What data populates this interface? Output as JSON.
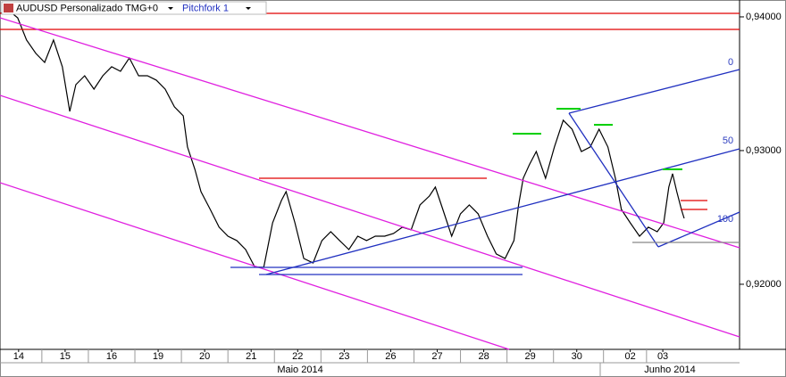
{
  "chart_data": {
    "type": "line",
    "title": "AUDUSD Personalizado TMG+0",
    "subtitle": "Pitchfork 1",
    "annotations": [
      "0",
      "50",
      "100"
    ],
    "months": [
      "Maio 2014",
      "Junho 2014"
    ],
    "color": "#000000",
    "grid": false,
    "xlim": [
      -0.4,
      15.5
    ],
    "ylim": [
      0.91513,
      0.94113
    ],
    "yticks": [
      {
        "value": 0.94,
        "label": "0,94000"
      },
      {
        "value": 0.93,
        "label": "0,93000"
      },
      {
        "value": 0.92,
        "label": "0,92000"
      }
    ],
    "xticks": [
      {
        "value": 0,
        "label": "14"
      },
      {
        "value": 1,
        "label": "15"
      },
      {
        "value": 2,
        "label": "16"
      },
      {
        "value": 3,
        "label": "19"
      },
      {
        "value": 4,
        "label": "20"
      },
      {
        "value": 5,
        "label": "21"
      },
      {
        "value": 6,
        "label": "22"
      },
      {
        "value": 7,
        "label": "23"
      },
      {
        "value": 8,
        "label": "26"
      },
      {
        "value": 9,
        "label": "27"
      },
      {
        "value": 10,
        "label": "28"
      },
      {
        "value": 11,
        "label": "29"
      },
      {
        "value": 12,
        "label": "30"
      },
      {
        "value": 13.15,
        "label": "02"
      },
      {
        "value": 13.85,
        "label": "03"
      }
    ],
    "x": [
      -0.4,
      -0.21,
      -0.02,
      0.17,
      0.37,
      0.56,
      0.75,
      0.94,
      1.1,
      1.23,
      1.42,
      1.62,
      1.81,
      2.0,
      2.19,
      2.38,
      2.58,
      2.77,
      2.96,
      3.15,
      3.35,
      3.54,
      3.63,
      3.79,
      3.92,
      4.12,
      4.31,
      4.5,
      4.69,
      4.88,
      5.08,
      5.27,
      5.46,
      5.65,
      5.75,
      5.94,
      6.13,
      6.33,
      6.52,
      6.71,
      6.9,
      7.1,
      7.29,
      7.48,
      7.67,
      7.87,
      8.06,
      8.25,
      8.44,
      8.63,
      8.83,
      8.96,
      9.12,
      9.31,
      9.5,
      9.69,
      9.88,
      10.08,
      10.27,
      10.46,
      10.65,
      10.75,
      10.85,
      10.98,
      11.13,
      11.33,
      11.52,
      11.71,
      11.9,
      12.1,
      12.29,
      12.48,
      12.67,
      12.83,
      12.96,
      13.15,
      13.35,
      13.54,
      13.73,
      13.87,
      13.98,
      14.06,
      14.15,
      14.25,
      14.31
    ],
    "values": [
      0.94027,
      0.94047,
      0.93993,
      0.93827,
      0.93727,
      0.9366,
      0.93827,
      0.93627,
      0.93293,
      0.93493,
      0.9356,
      0.9346,
      0.9356,
      0.93627,
      0.93593,
      0.93693,
      0.9356,
      0.9356,
      0.93527,
      0.9346,
      0.93327,
      0.9326,
      0.93027,
      0.9286,
      0.92693,
      0.9256,
      0.92427,
      0.9236,
      0.92327,
      0.9226,
      0.92127,
      0.92127,
      0.9246,
      0.92627,
      0.92693,
      0.9246,
      0.92193,
      0.9216,
      0.92327,
      0.92393,
      0.92327,
      0.9226,
      0.9236,
      0.92327,
      0.9236,
      0.9236,
      0.9238,
      0.92427,
      0.92407,
      0.92593,
      0.9266,
      0.92727,
      0.9256,
      0.9236,
      0.92527,
      0.92593,
      0.92527,
      0.9236,
      0.92227,
      0.92193,
      0.92327,
      0.92593,
      0.92793,
      0.92893,
      0.92993,
      0.92793,
      0.93027,
      0.93227,
      0.9316,
      0.92993,
      0.93027,
      0.9316,
      0.93027,
      0.92793,
      0.9256,
      0.9246,
      0.9236,
      0.92427,
      0.92393,
      0.9246,
      0.92727,
      0.92827,
      0.92693,
      0.9256,
      0.92493
    ]
  }
}
